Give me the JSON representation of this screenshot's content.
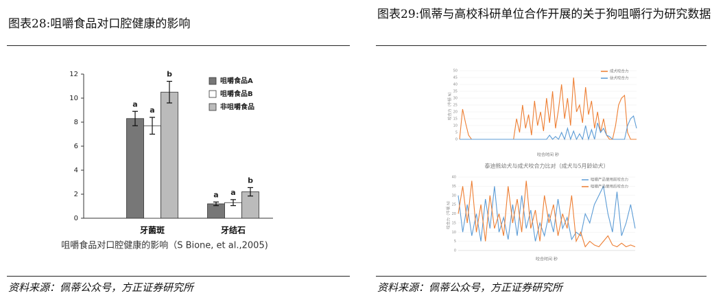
{
  "figures": [
    {
      "title": "图表28:咀嚼食品对口腔健康的影响",
      "chart": {
        "type": "bar",
        "categories": [
          "牙菌斑",
          "牙结石"
        ],
        "series": [
          {
            "name": "咀嚼食品A",
            "color": "#777777",
            "values": [
              8.3,
              1.2
            ],
            "errors": [
              0.6,
              0.15
            ],
            "letters": [
              "a",
              "a"
            ]
          },
          {
            "name": "咀嚼食品B",
            "color": "#ffffff",
            "values": [
              7.7,
              1.3
            ],
            "errors": [
              0.7,
              0.25
            ],
            "letters": [
              "a",
              "a"
            ]
          },
          {
            "name": "非咀嚼食品",
            "color": "#bbbbbb",
            "values": [
              10.5,
              2.2
            ],
            "errors": [
              0.9,
              0.35
            ],
            "letters": [
              "b",
              "b"
            ]
          }
        ],
        "ylim": [
          0,
          12
        ],
        "yticks": [
          0,
          2,
          4,
          6,
          8,
          10,
          12
        ],
        "caption": "咀嚼食品对口腔健康的影响（S Bione, et al.,2005)"
      },
      "source": "资料来源：佩蒂公众号，方正证券研究所"
    },
    {
      "title": "图表29:佩蒂与高校科研单位合作开展的关于狗咀嚼行为研究数据",
      "charts": [
        {
          "type": "line",
          "ylabel": "咬合力（牛顿 N）",
          "xlabel": "咬合时间 秒",
          "series": [
            {
              "name": "成犬咬合力",
              "color": "#ed7d31",
              "values": [
                0,
                22,
                12,
                3,
                0,
                0,
                0,
                0,
                0,
                0,
                0,
                0,
                0,
                0,
                0,
                0,
                0,
                0,
                0,
                15,
                5,
                25,
                8,
                18,
                3,
                28,
                10,
                20,
                6,
                30,
                12,
                35,
                8,
                22,
                40,
                15,
                30,
                10,
                45,
                20,
                25,
                12,
                38,
                18,
                28,
                8,
                20,
                5,
                15,
                3,
                0,
                0,
                10,
                25,
                30,
                32,
                5,
                0,
                0,
                0
              ]
            },
            {
              "name": "幼犬咬合力",
              "color": "#5b9bd5",
              "values": [
                0,
                0,
                0,
                0,
                0,
                0,
                0,
                0,
                0,
                0,
                0,
                0,
                0,
                0,
                0,
                0,
                0,
                0,
                0,
                0,
                0,
                0,
                0,
                0,
                0,
                0,
                0,
                0,
                0,
                0,
                3,
                0,
                2,
                0,
                5,
                0,
                8,
                0,
                6,
                0,
                4,
                0,
                10,
                0,
                7,
                0,
                12,
                5,
                8,
                3,
                2,
                0,
                0,
                0,
                0,
                0,
                10,
                15,
                17,
                8
              ]
            }
          ],
          "ylim": [
            0,
            50
          ],
          "yticks": [
            0,
            5,
            10,
            15,
            20,
            25,
            30,
            35,
            40,
            45,
            50
          ]
        },
        {
          "type": "line",
          "title": "泰迪熊幼犬与成犬咬合力比对（成犬与5月龄幼犬）",
          "ylabel": "咬合力（牛顿 N）",
          "xlabel": "咬合时间 秒",
          "series": [
            {
              "name": "咀嚼产品使用前咬合力",
              "color": "#5b9bd5",
              "values": [
                30,
                10,
                25,
                8,
                20,
                5,
                28,
                12,
                35,
                10,
                18,
                6,
                25,
                8,
                30,
                12,
                22,
                5,
                15,
                8,
                20,
                10,
                28,
                12,
                18,
                6,
                10,
                8,
                20,
                15,
                25,
                30,
                35,
                20,
                10,
                32,
                8,
                15,
                25,
                12
              ]
            },
            {
              "name": "咀嚼产品使用后咬合力",
              "color": "#ed7d31",
              "values": [
                20,
                35,
                15,
                38,
                10,
                25,
                5,
                30,
                12,
                20,
                8,
                35,
                15,
                28,
                10,
                38,
                12,
                22,
                5,
                30,
                15,
                25,
                8,
                20,
                12,
                30,
                5,
                10,
                2,
                5,
                3,
                2,
                5,
                8,
                3,
                2,
                4,
                2,
                3,
                2
              ]
            }
          ],
          "ylim": [
            0,
            40
          ],
          "yticks": [
            0,
            5,
            10,
            15,
            20,
            25,
            30,
            35,
            40
          ]
        }
      ],
      "source": "资料来源：佩蒂公众号，方正证券研究所"
    }
  ]
}
